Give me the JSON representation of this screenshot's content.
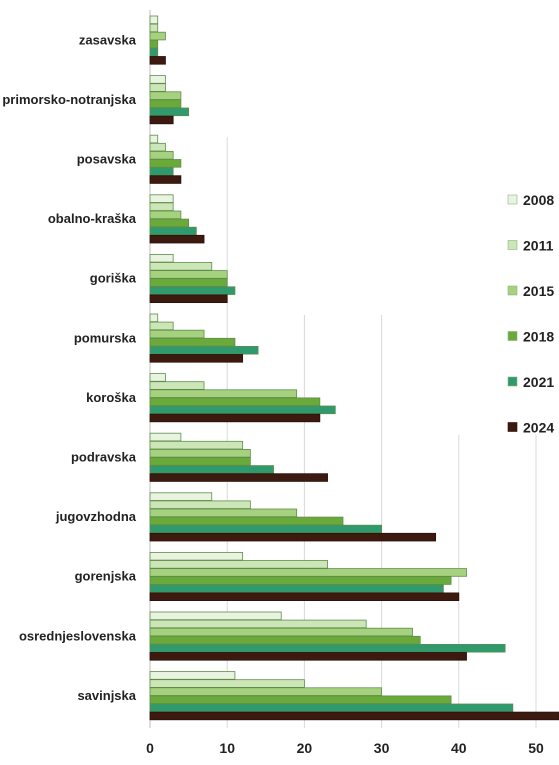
{
  "chart_data": {
    "type": "bar",
    "orientation": "horizontal",
    "categories": [
      "zasavska",
      "primorsko-notranjska",
      "posavska",
      "obalno-kraška",
      "goriška",
      "pomurska",
      "koroška",
      "podravska",
      "jugovzhodna",
      "gorenjska",
      "osrednjeslovenska",
      "savinjska"
    ],
    "series": [
      {
        "name": "2008",
        "color": "#e8f3e0",
        "values": [
          1,
          2,
          1,
          3,
          3,
          1,
          2,
          4,
          8,
          12,
          17,
          11
        ]
      },
      {
        "name": "2011",
        "color": "#cde6b8",
        "values": [
          1,
          2,
          2,
          3,
          8,
          3,
          7,
          12,
          13,
          23,
          28,
          20
        ]
      },
      {
        "name": "2015",
        "color": "#a6d27f",
        "values": [
          2,
          4,
          3,
          4,
          10,
          7,
          19,
          13,
          19,
          41,
          34,
          30
        ]
      },
      {
        "name": "2018",
        "color": "#6aaa3a",
        "values": [
          1,
          4,
          4,
          5,
          10,
          11,
          22,
          13,
          25,
          39,
          35,
          39
        ]
      },
      {
        "name": "2021",
        "color": "#2e9a6e",
        "values": [
          1,
          5,
          3,
          6,
          11,
          14,
          24,
          16,
          30,
          38,
          46,
          47
        ]
      },
      {
        "name": "2024",
        "color": "#3d1a10",
        "values": [
          2,
          3,
          4,
          7,
          10,
          12,
          22,
          23,
          37,
          40,
          41,
          54
        ]
      }
    ],
    "x_ticks": [
      "0",
      "10",
      "20",
      "30",
      "40",
      "50"
    ],
    "xlim": [
      0,
      53
    ],
    "grid": "vertical",
    "legend_position": "right"
  }
}
